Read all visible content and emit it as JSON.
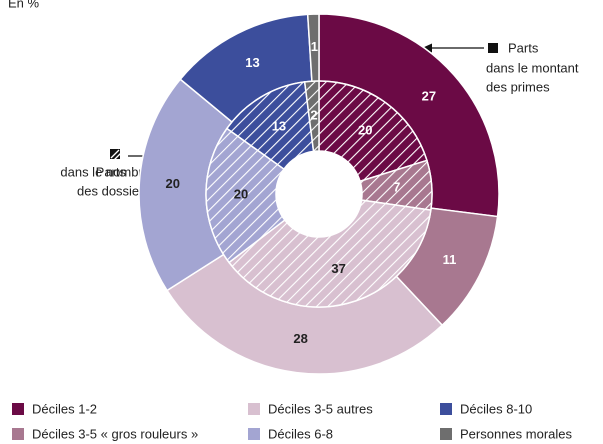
{
  "chart_data": {
    "type": "nested-donut",
    "title": "En %",
    "categories": [
      "Déciles 1-2",
      "Déciles 3-5 « gros rouleurs »",
      "Déciles 3-5 autres",
      "Déciles 6-8",
      "Déciles 8-10",
      "Personnes morales"
    ],
    "colors": [
      "#6b0a45",
      "#a87890",
      "#d8c0d0",
      "#a3a5d2",
      "#3c4e9c",
      "#6e6e6e"
    ],
    "series": [
      {
        "name_lines": [
          "Parts",
          "dans le montant",
          "des primes"
        ],
        "ring": "outer",
        "values": [
          27,
          11,
          28,
          20,
          13,
          1
        ]
      },
      {
        "name_lines": [
          "Parts",
          "dans le nombre",
          "des dossiers"
        ],
        "ring": "inner",
        "hatched": true,
        "values": [
          20,
          7,
          37,
          20,
          13,
          2
        ]
      }
    ]
  }
}
